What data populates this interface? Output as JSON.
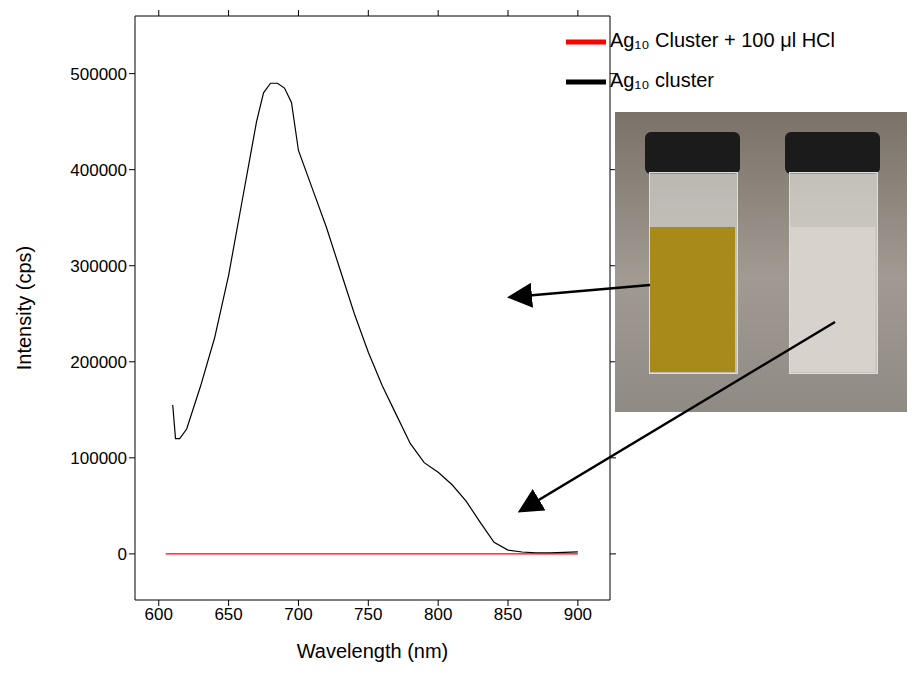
{
  "chart_data": {
    "type": "line",
    "x_label": "Wavelength (nm)",
    "y_label": "Intensity (cps)",
    "xlim": [
      583,
      923
    ],
    "xticks": [
      600,
      650,
      700,
      750,
      800,
      850,
      900
    ],
    "ylim": [
      -48000,
      560000
    ],
    "yticks": [
      0,
      100000,
      200000,
      300000,
      400000,
      500000
    ],
    "legend": "upper right",
    "series": [
      {
        "name": "Ag₁₀ cluster",
        "color": "#000000",
        "x": [
          610,
          612,
          615,
          620,
          630,
          640,
          650,
          660,
          665,
          670,
          675,
          680,
          685,
          690,
          695,
          700,
          710,
          720,
          730,
          740,
          750,
          760,
          770,
          780,
          790,
          800,
          810,
          820,
          830,
          840,
          850,
          860,
          870,
          880,
          890,
          900
        ],
        "values": [
          155000,
          120000,
          120000,
          130000,
          175000,
          225000,
          290000,
          370000,
          410000,
          450000,
          480000,
          490000,
          490000,
          485000,
          470000,
          420000,
          380000,
          340000,
          295000,
          250000,
          210000,
          175000,
          145000,
          115000,
          95000,
          85000,
          72000,
          55000,
          33000,
          12000,
          4000,
          2000,
          1000,
          1000,
          1500,
          2000
        ]
      },
      {
        "name": "Ag₁₀ Cluster + 100 μl HCl",
        "color": "#ff0000",
        "x": [
          605,
          650,
          700,
          750,
          800,
          850,
          900
        ],
        "values": [
          0,
          0,
          0,
          0,
          0,
          0,
          0
        ]
      }
    ]
  }
}
